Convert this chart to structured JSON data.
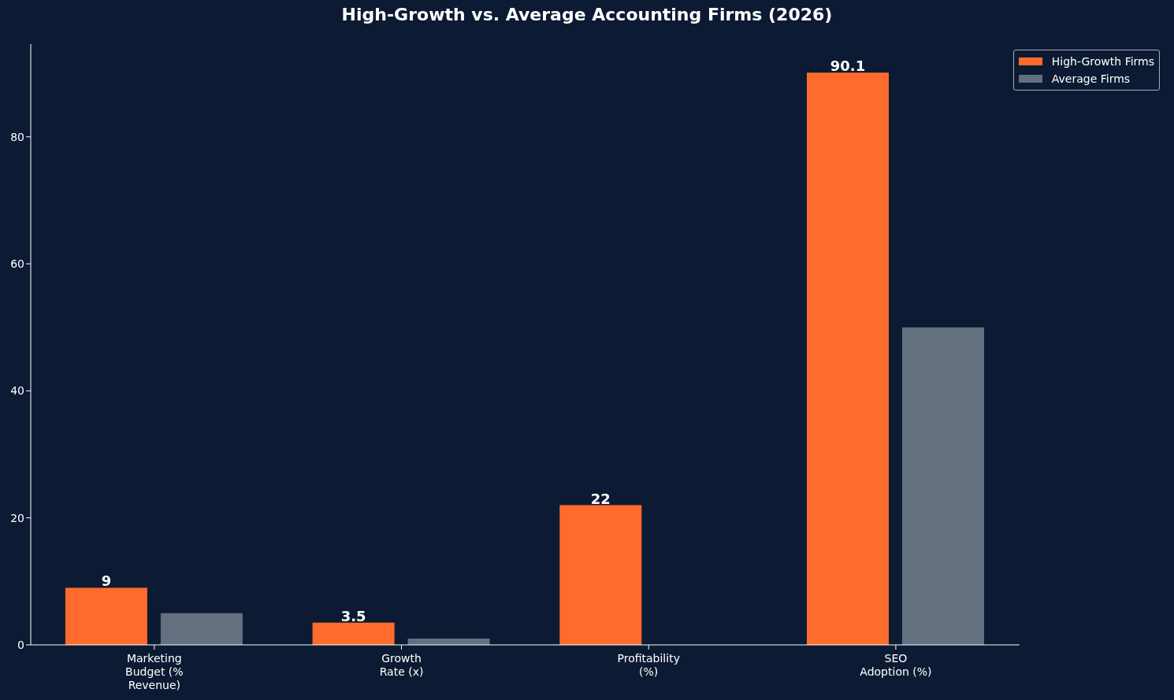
{
  "chart_data": {
    "type": "bar",
    "title": "High-Growth vs. Average Accounting Firms (2026)",
    "categories": [
      "Marketing\nBudget (%\nRevenue)",
      "Growth\nRate (x)",
      "Profitability\n(%)",
      "SEO\nAdoption (%)"
    ],
    "series": [
      {
        "name": "High-Growth Firms",
        "color": "#ff6b2c",
        "values": [
          9,
          3.5,
          22,
          90.1
        ],
        "value_labels": [
          "9",
          "3.5",
          "22",
          "90.1"
        ]
      },
      {
        "name": "Average Firms",
        "color": "#64707f",
        "values": [
          5,
          1,
          null,
          50
        ]
      }
    ],
    "ylim": [
      0,
      94.6
    ],
    "yticks": [
      0,
      20,
      40,
      60,
      80
    ],
    "grid": false,
    "legend": "top right"
  }
}
